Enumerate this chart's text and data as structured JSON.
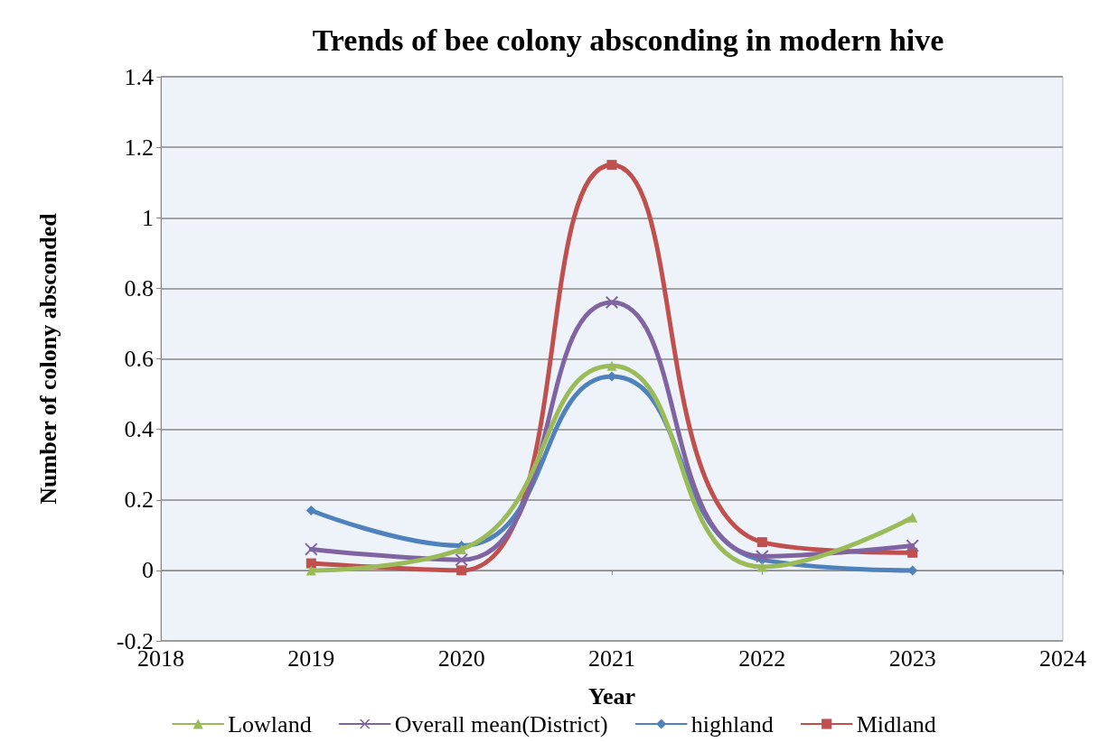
{
  "chart_data": {
    "type": "line",
    "title": "Trends of bee colony absconding in modern hive",
    "xlabel": "Year",
    "ylabel": "Number of colony absconded",
    "x": [
      2019,
      2020,
      2021,
      2022,
      2023
    ],
    "xlim": [
      2018,
      2024
    ],
    "xticks": [
      2018,
      2019,
      2020,
      2021,
      2022,
      2023,
      2024
    ],
    "ylim": [
      -0.2,
      1.4
    ],
    "yticks": [
      -0.2,
      0,
      0.2,
      0.4,
      0.6,
      0.8,
      1,
      1.2,
      1.4
    ],
    "grid": "y",
    "legend": "bottom",
    "series": [
      {
        "name": "Lowland",
        "color": "#9bbb59",
        "marker": "triangle",
        "values": [
          0,
          0.06,
          0.58,
          0.01,
          0.15
        ]
      },
      {
        "name": "Overall mean(District)",
        "color": "#8064a2",
        "marker": "cross",
        "values": [
          0.06,
          0.03,
          0.76,
          0.04,
          0.07
        ]
      },
      {
        "name": "highland",
        "color": "#4f81bd",
        "marker": "diamond",
        "values": [
          0.17,
          0.07,
          0.55,
          0.03,
          0
        ]
      },
      {
        "name": "Midland",
        "color": "#c0504d",
        "marker": "square",
        "values": [
          0.02,
          0,
          1.15,
          0.08,
          0.05
        ]
      }
    ]
  }
}
